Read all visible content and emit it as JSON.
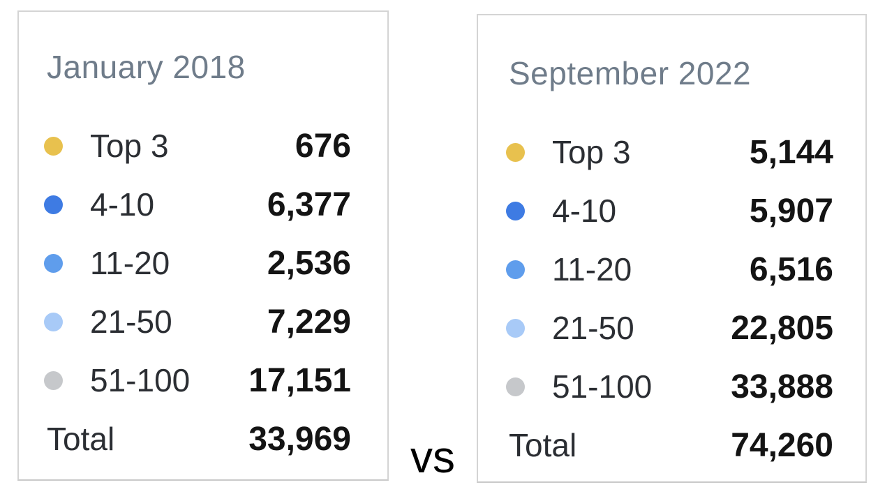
{
  "vs_label": "vs",
  "colors": {
    "panel_border": "#d4d4d4",
    "title_text": "#6f7c8a",
    "label_text": "#2b2e33",
    "value_text": "#141414",
    "dot_top3": "#e8c14e",
    "dot_4_10": "#3e7be3",
    "dot_11_20": "#5f9dec",
    "dot_21_50": "#a8caf7",
    "dot_51_100": "#c6c8cb"
  },
  "panels": [
    {
      "title": "January 2018",
      "rows": [
        {
          "label": "Top 3",
          "value": "676",
          "color": "#e8c14e"
        },
        {
          "label": "4-10",
          "value": "6,377",
          "color": "#3e7be3"
        },
        {
          "label": "11-20",
          "value": "2,536",
          "color": "#5f9dec"
        },
        {
          "label": "21-50",
          "value": "7,229",
          "color": "#a8caf7"
        },
        {
          "label": "51-100",
          "value": "17,151",
          "color": "#c6c8cb"
        }
      ],
      "total": {
        "label": "Total",
        "value": "33,969"
      }
    },
    {
      "title": "September 2022",
      "rows": [
        {
          "label": "Top 3",
          "value": "5,144",
          "color": "#e8c14e"
        },
        {
          "label": "4-10",
          "value": "5,907",
          "color": "#3e7be3"
        },
        {
          "label": "11-20",
          "value": "6,516",
          "color": "#5f9dec"
        },
        {
          "label": "21-50",
          "value": "22,805",
          "color": "#a8caf7"
        },
        {
          "label": "51-100",
          "value": "33,888",
          "color": "#c6c8cb"
        }
      ],
      "total": {
        "label": "Total",
        "value": "74,260"
      }
    }
  ],
  "chart_data": {
    "type": "table",
    "title": "Ranking distribution comparison: January 2018 vs September 2022",
    "categories": [
      "Top 3",
      "4-10",
      "11-20",
      "21-50",
      "51-100"
    ],
    "series": [
      {
        "name": "January 2018",
        "values": [
          676,
          6377,
          2536,
          7229,
          17151
        ],
        "total": 33969
      },
      {
        "name": "September 2022",
        "values": [
          5144,
          5907,
          6516,
          22805,
          33888
        ],
        "total": 74260
      }
    ],
    "legend_colors": [
      "#e8c14e",
      "#3e7be3",
      "#5f9dec",
      "#a8caf7",
      "#c6c8cb"
    ],
    "legend_position": "left"
  }
}
